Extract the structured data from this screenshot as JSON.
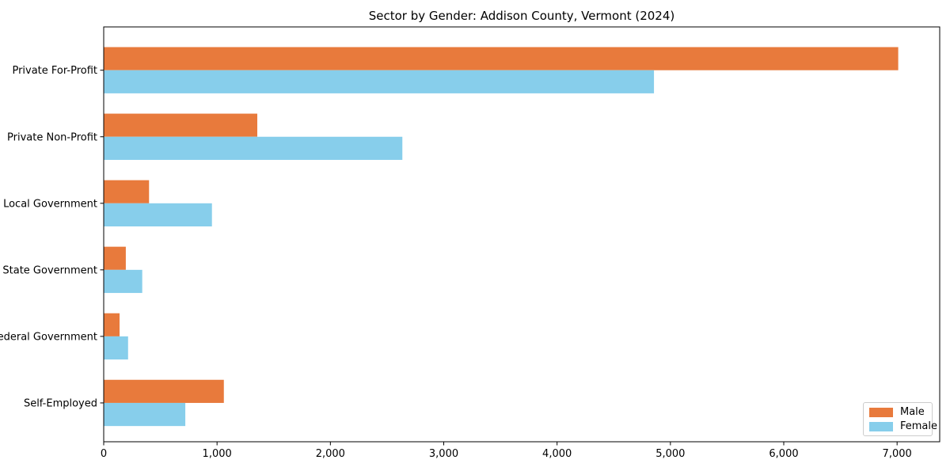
{
  "chart_data": {
    "type": "bar",
    "orientation": "horizontal",
    "title": "Sector by Gender: Addison County, Vermont (2024)",
    "xlabel": "",
    "ylabel": "",
    "categories": [
      "Private For-Profit",
      "Private Non-Profit",
      "Local Government",
      "State Government",
      "Federal Government",
      "Self-Employed"
    ],
    "series": [
      {
        "name": "Male",
        "color": "#e87a3c",
        "values": [
          7010,
          1355,
          400,
          195,
          140,
          1060
        ]
      },
      {
        "name": "Female",
        "color": "#87ceeb",
        "values": [
          4855,
          2635,
          955,
          340,
          215,
          720
        ]
      }
    ],
    "xlim": [
      0,
      7376
    ],
    "xticks": [
      0,
      1000,
      2000,
      3000,
      4000,
      5000,
      6000,
      7000
    ],
    "xtick_labels": [
      "0",
      "1,000",
      "2,000",
      "3,000",
      "4,000",
      "5,000",
      "6,000",
      "7,000"
    ],
    "grid": false,
    "legend": {
      "position": "lower right",
      "entries": [
        "Male",
        "Female"
      ]
    }
  }
}
